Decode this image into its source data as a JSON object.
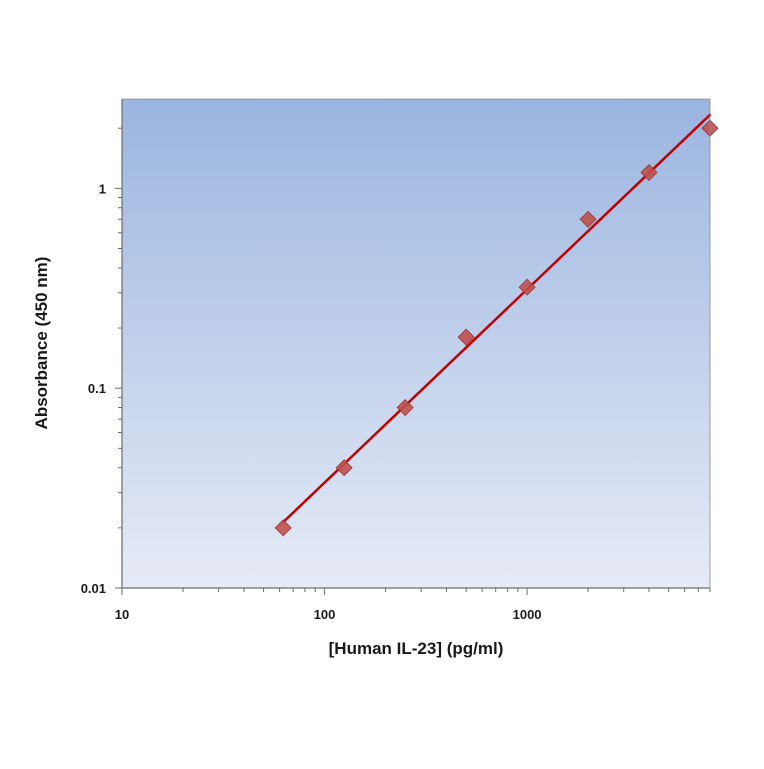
{
  "chart_data": {
    "type": "scatter",
    "title": "",
    "xlabel": "[Human IL-23] (pg/ml)",
    "ylabel": "Absorbance (450 nm)",
    "x_scale": "log",
    "y_scale": "log",
    "xlim": [
      10,
      8000
    ],
    "ylim": [
      0.01,
      2.8
    ],
    "x_ticks": [
      {
        "value": 10,
        "label": "10"
      },
      {
        "value": 100,
        "label": "100"
      },
      {
        "value": 1000,
        "label": "1000"
      }
    ],
    "y_ticks": [
      {
        "value": 0.01,
        "label": "0.01"
      },
      {
        "value": 0.1,
        "label": "0.1"
      },
      {
        "value": 1,
        "label": "1"
      }
    ],
    "grid": false,
    "legend": "none",
    "series": [
      {
        "x": [
          62.5,
          125,
          250,
          500,
          1000,
          2000,
          4000,
          8000
        ],
        "y": [
          0.02,
          0.04,
          0.08,
          0.18,
          0.32,
          0.7,
          1.2,
          2.0
        ],
        "marker": "diamond",
        "color": "#c0504d",
        "fit_line": {
          "type": "linear (log-log)",
          "x_range": [
            62.5,
            8000
          ],
          "color": "#c00000"
        }
      }
    ],
    "background_gradient": [
      "#9bb5e0",
      "#e6ebf6"
    ]
  }
}
